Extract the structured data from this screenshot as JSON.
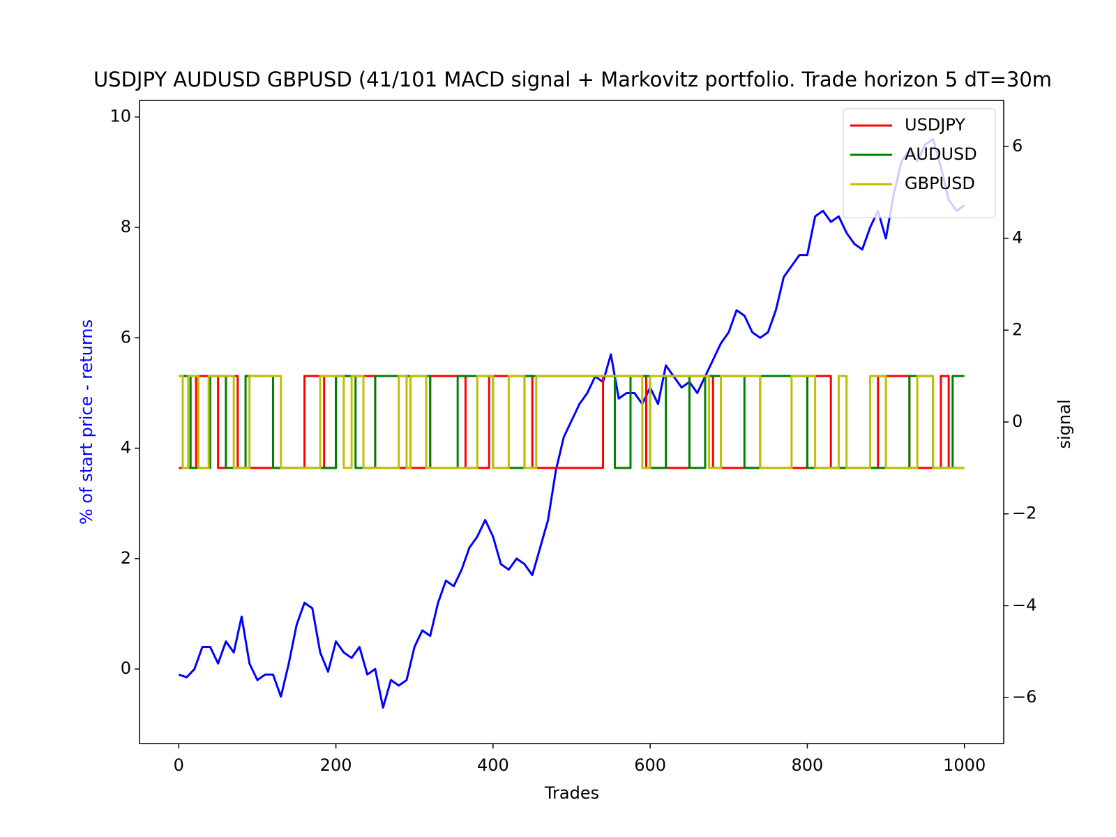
{
  "chart_data": {
    "type": "line",
    "title": "USDJPY AUDUSD GBPUSD (41/101 MACD signal + Markovitz portfolio. Trade horizon 5 dT=30m",
    "xlabel": "Trades",
    "ylabel": "% of start price - returns",
    "ylabel_color": "#0000ff",
    "y2label": "signal",
    "xlim": [
      -50,
      1050
    ],
    "xticks": [
      0,
      200,
      400,
      600,
      800,
      1000
    ],
    "ylim": [
      -1.35,
      10.3
    ],
    "yticks": [
      0,
      2,
      4,
      6,
      8,
      10
    ],
    "y2lim": [
      -7,
      7
    ],
    "y2ticks": [
      {
        "value": -6,
        "label": "−6"
      },
      {
        "value": -4,
        "label": "−4"
      },
      {
        "value": -2,
        "label": "−2"
      },
      0,
      2,
      4,
      6
    ],
    "legend": "upper right",
    "grid": false,
    "x": [
      0,
      10,
      20,
      30,
      40,
      50,
      60,
      70,
      80,
      90,
      100,
      110,
      120,
      130,
      140,
      150,
      160,
      170,
      180,
      190,
      200,
      210,
      220,
      230,
      240,
      250,
      260,
      270,
      280,
      290,
      300,
      310,
      320,
      330,
      340,
      350,
      360,
      370,
      380,
      390,
      400,
      410,
      420,
      430,
      440,
      450,
      460,
      470,
      480,
      490,
      500,
      510,
      520,
      530,
      540,
      550,
      560,
      570,
      580,
      590,
      600,
      610,
      620,
      630,
      640,
      650,
      660,
      670,
      680,
      690,
      700,
      710,
      720,
      730,
      740,
      750,
      760,
      770,
      780,
      790,
      800,
      810,
      820,
      830,
      840,
      850,
      860,
      870,
      880,
      890,
      900,
      910,
      920,
      930,
      940,
      950,
      960,
      970,
      980,
      990,
      1000
    ],
    "series": [
      {
        "color": "#0000ff",
        "values": [
          -0.1,
          -0.15,
          0.0,
          0.4,
          0.4,
          0.1,
          0.5,
          0.3,
          0.95,
          0.1,
          -0.2,
          -0.1,
          -0.1,
          -0.5,
          0.1,
          0.8,
          1.2,
          1.1,
          0.3,
          -0.05,
          0.5,
          0.3,
          0.2,
          0.4,
          -0.1,
          0.0,
          -0.7,
          -0.2,
          -0.3,
          -0.2,
          0.4,
          0.7,
          0.6,
          1.2,
          1.6,
          1.5,
          1.8,
          2.2,
          2.4,
          2.7,
          2.4,
          1.9,
          1.8,
          2.0,
          1.9,
          1.7,
          2.2,
          2.7,
          3.6,
          4.2,
          4.5,
          4.8,
          5.0,
          5.3,
          5.2,
          5.7,
          4.9,
          5.0,
          5.0,
          4.8,
          5.1,
          4.8,
          5.5,
          5.3,
          5.1,
          5.2,
          5.0,
          5.3,
          5.6,
          5.9,
          6.1,
          6.5,
          6.4,
          6.1,
          6.0,
          6.1,
          6.5,
          7.1,
          7.3,
          7.5,
          7.5,
          8.2,
          8.3,
          8.1,
          8.2,
          7.9,
          7.7,
          7.6,
          8.0,
          8.3,
          7.8,
          8.6,
          9.2,
          9.4,
          9.2,
          9.5,
          9.6,
          9.1,
          8.5,
          8.3,
          8.4
        ]
      },
      {
        "name": "USDJPY",
        "color": "#ff0000",
        "axis": "y2",
        "x": [
          0,
          22,
          22,
          50,
          50,
          60,
          60,
          75,
          75,
          160,
          160,
          185,
          185,
          200,
          200,
          250,
          250,
          320,
          320,
          365,
          365,
          395,
          395,
          450,
          450,
          540,
          540,
          595,
          595,
          650,
          650,
          680,
          680,
          800,
          800,
          830,
          830,
          890,
          890,
          930,
          930,
          970,
          970,
          980,
          980,
          1000
        ],
        "values": [
          -1,
          -1,
          1,
          1,
          -1,
          -1,
          1,
          1,
          -1,
          -1,
          1,
          1,
          -1,
          -1,
          1,
          1,
          -1,
          -1,
          1,
          1,
          -1,
          -1,
          1,
          1,
          -1,
          -1,
          1,
          1,
          -1,
          -1,
          1,
          1,
          -1,
          -1,
          1,
          1,
          -1,
          -1,
          1,
          1,
          -1,
          -1,
          1,
          1,
          -1,
          -1
        ]
      },
      {
        "name": "AUDUSD",
        "color": "#008000",
        "axis": "y2",
        "x": [
          0,
          15,
          15,
          40,
          40,
          60,
          60,
          85,
          85,
          120,
          120,
          200,
          200,
          225,
          225,
          250,
          250,
          320,
          320,
          355,
          355,
          400,
          400,
          440,
          440,
          555,
          555,
          575,
          575,
          600,
          600,
          620,
          620,
          650,
          650,
          670,
          670,
          720,
          720,
          740,
          740,
          800,
          800,
          930,
          930,
          960,
          960,
          985,
          985,
          1000
        ],
        "values": [
          1,
          1,
          -1,
          -1,
          1,
          1,
          -1,
          -1,
          1,
          1,
          -1,
          -1,
          1,
          1,
          -1,
          -1,
          1,
          1,
          -1,
          -1,
          1,
          1,
          -1,
          -1,
          1,
          1,
          -1,
          -1,
          1,
          1,
          -1,
          -1,
          1,
          1,
          -1,
          -1,
          1,
          1,
          -1,
          -1,
          1,
          1,
          -1,
          -1,
          1,
          1,
          -1,
          -1,
          1,
          1
        ]
      },
      {
        "name": "GBPUSD",
        "color": "#bfbf00",
        "axis": "y2",
        "x": [
          0,
          5,
          5,
          12,
          12,
          25,
          25,
          38,
          38,
          70,
          70,
          90,
          90,
          130,
          130,
          180,
          180,
          210,
          210,
          220,
          220,
          235,
          235,
          280,
          280,
          290,
          290,
          295,
          295,
          315,
          315,
          380,
          380,
          400,
          400,
          420,
          420,
          440,
          440,
          455,
          455,
          590,
          590,
          600,
          600,
          675,
          675,
          690,
          690,
          740,
          740,
          780,
          780,
          810,
          810,
          840,
          840,
          850,
          850,
          880,
          880,
          900,
          900,
          940,
          940,
          960,
          960,
          1000
        ],
        "values": [
          1,
          1,
          -1,
          -1,
          1,
          1,
          -1,
          -1,
          1,
          1,
          -1,
          -1,
          1,
          1,
          -1,
          -1,
          1,
          1,
          -1,
          -1,
          1,
          1,
          -1,
          -1,
          1,
          1,
          -1,
          -1,
          1,
          1,
          -1,
          -1,
          1,
          1,
          -1,
          -1,
          1,
          1,
          -1,
          -1,
          1,
          1,
          -1,
          -1,
          1,
          1,
          -1,
          -1,
          1,
          1,
          -1,
          -1,
          1,
          1,
          -1,
          -1,
          1,
          1,
          -1,
          -1,
          1,
          1,
          -1,
          -1,
          1,
          1,
          -1,
          -1
        ]
      }
    ]
  }
}
